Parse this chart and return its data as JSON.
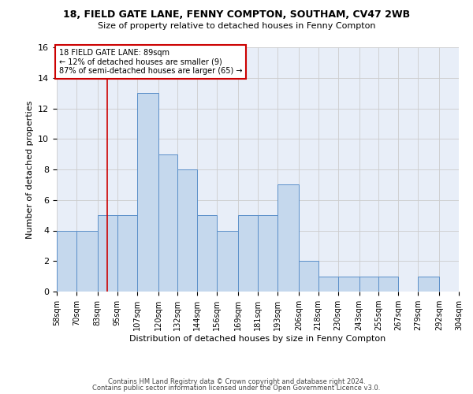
{
  "title1": "18, FIELD GATE LANE, FENNY COMPTON, SOUTHAM, CV47 2WB",
  "title2": "Size of property relative to detached houses in Fenny Compton",
  "xlabel": "Distribution of detached houses by size in Fenny Compton",
  "ylabel": "Number of detached properties",
  "bin_edges": [
    58,
    70,
    83,
    95,
    107,
    120,
    132,
    144,
    156,
    169,
    181,
    193,
    206,
    218,
    230,
    243,
    255,
    267,
    279,
    292,
    304
  ],
  "counts": [
    4,
    4,
    5,
    5,
    13,
    9,
    8,
    5,
    4,
    5,
    5,
    7,
    2,
    1,
    1,
    1,
    1,
    0,
    1,
    0
  ],
  "bar_facecolor": "#c5d8ed",
  "bar_edgecolor": "#5b8fc9",
  "vline_x": 89,
  "vline_color": "#cc0000",
  "annotation_text": "18 FIELD GATE LANE: 89sqm\n← 12% of detached houses are smaller (9)\n87% of semi-detached houses are larger (65) →",
  "annotation_box_edgecolor": "#cc0000",
  "annotation_box_facecolor": "#ffffff",
  "ylim": [
    0,
    16
  ],
  "yticks": [
    0,
    2,
    4,
    6,
    8,
    10,
    12,
    14,
    16
  ],
  "grid_color": "#cccccc",
  "background_color": "#e8eef8",
  "footer1": "Contains HM Land Registry data © Crown copyright and database right 2024.",
  "footer2": "Contains public sector information licensed under the Open Government Licence v3.0.",
  "tick_labels": [
    "58sqm",
    "70sqm",
    "83sqm",
    "95sqm",
    "107sqm",
    "120sqm",
    "132sqm",
    "144sqm",
    "156sqm",
    "169sqm",
    "181sqm",
    "193sqm",
    "206sqm",
    "218sqm",
    "230sqm",
    "243sqm",
    "255sqm",
    "267sqm",
    "279sqm",
    "292sqm",
    "304sqm"
  ]
}
